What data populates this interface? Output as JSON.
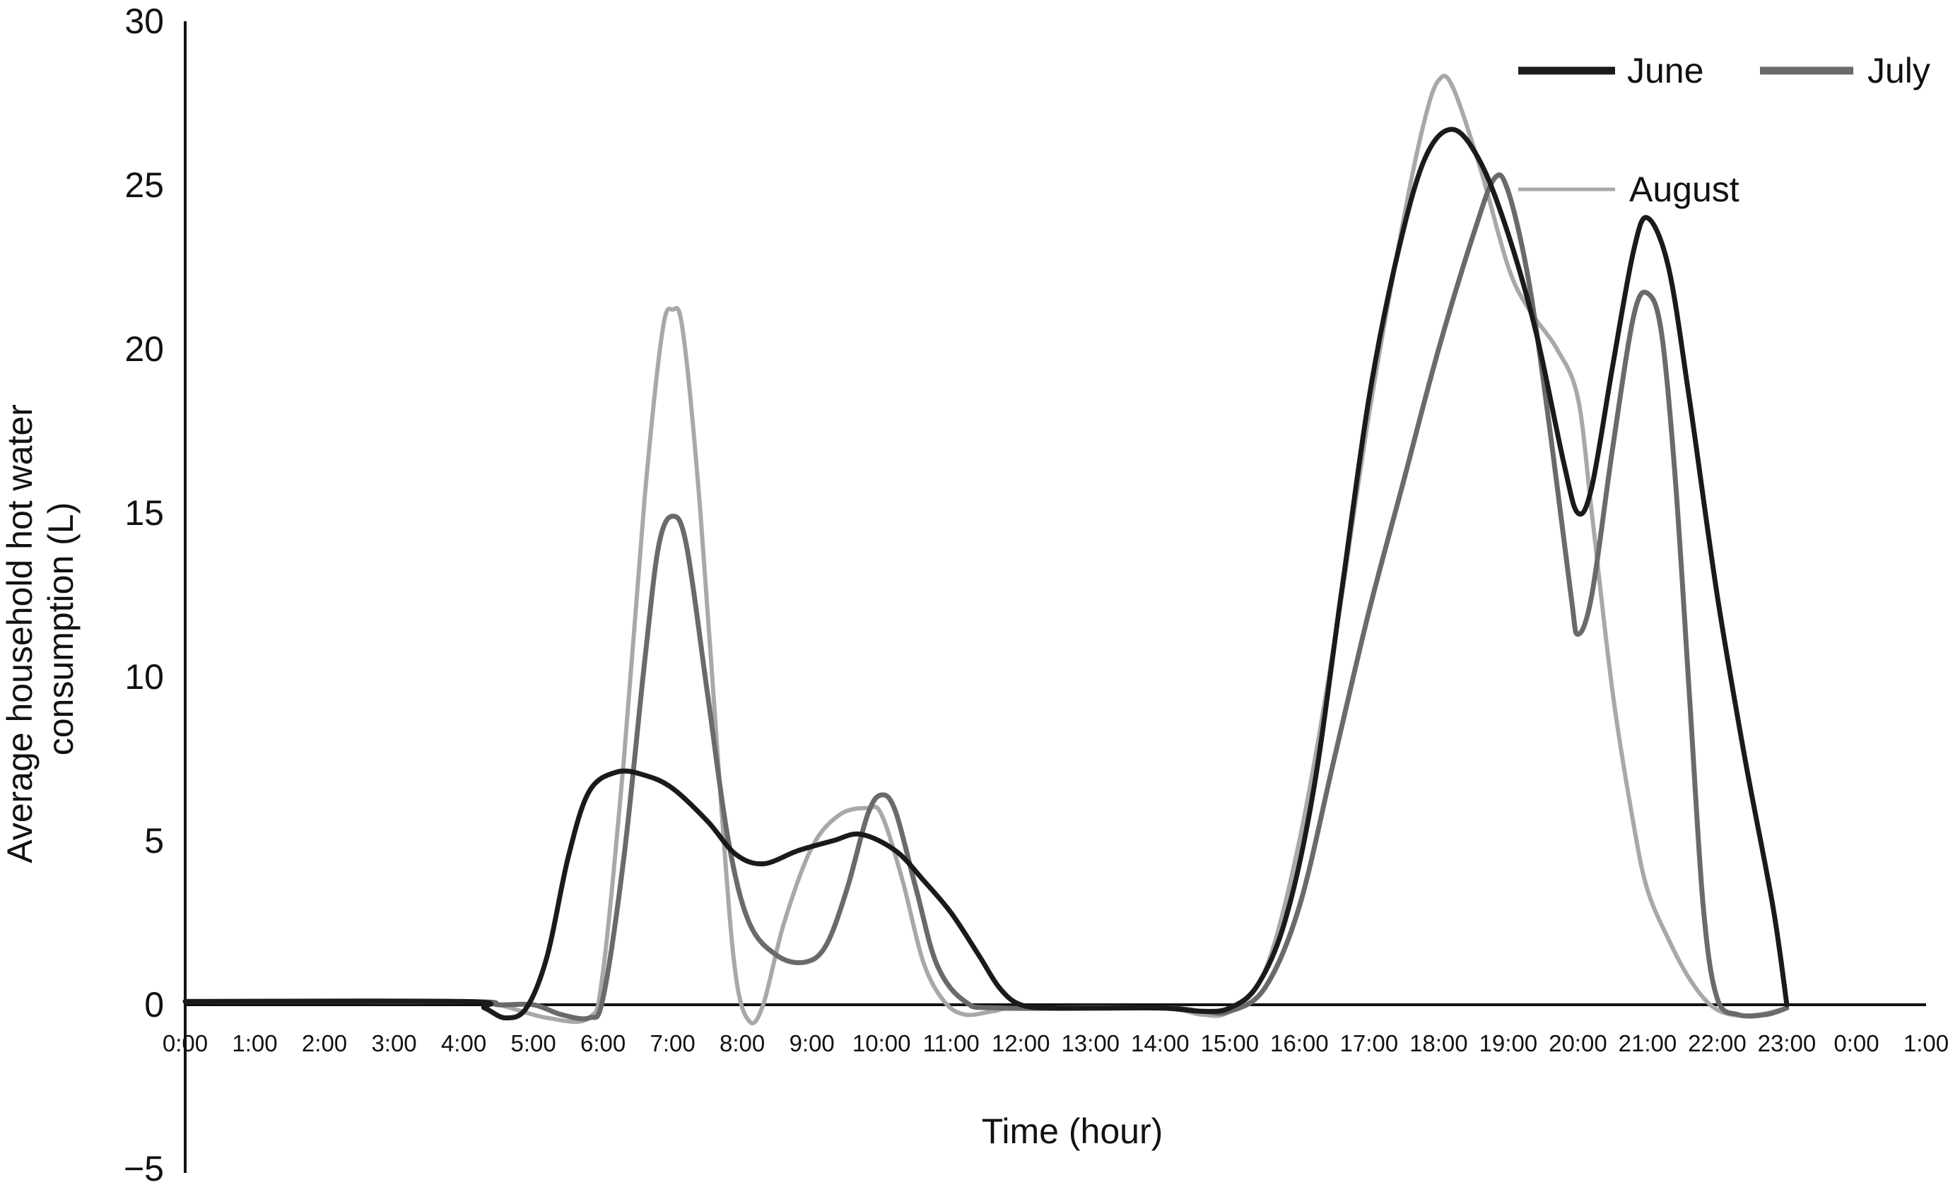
{
  "chart_data": {
    "type": "line",
    "title": "",
    "xlabel": "Time (hour)",
    "ylabel_lines": [
      "Average household hot water",
      "consumption (L)"
    ],
    "ylim": [
      -5,
      30
    ],
    "yticks": [
      "30",
      "25",
      "20",
      "15",
      "10",
      "5",
      "0",
      "−5"
    ],
    "x_tick_labels": [
      "0:00",
      "1:00",
      "2:00",
      "3:00",
      "4:00",
      "5:00",
      "6:00",
      "7:00",
      "8:00",
      "9:00",
      "10:00",
      "11:00",
      "12:00",
      "13:00",
      "14:00",
      "15:00",
      "16:00",
      "17:00",
      "18:00",
      "19:00",
      "20:00",
      "21:00",
      "22:00",
      "23:00",
      "0:00",
      "1:00"
    ],
    "x_unit": "hours since 0:00",
    "xlim": [
      0,
      25
    ],
    "grid": false,
    "legend_position": "top-right",
    "series": [
      {
        "name": "June",
        "color": "#1a1a1a",
        "width": 7,
        "points": [
          [
            0,
            0.1
          ],
          [
            4,
            0.1
          ],
          [
            4.3,
            -0.1
          ],
          [
            4.6,
            -0.4
          ],
          [
            4.9,
            -0.1
          ],
          [
            5.2,
            1.5
          ],
          [
            5.5,
            4.5
          ],
          [
            5.8,
            6.5
          ],
          [
            6.2,
            7.1
          ],
          [
            6.6,
            7.0
          ],
          [
            7.0,
            6.6
          ],
          [
            7.5,
            5.6
          ],
          [
            7.9,
            4.6
          ],
          [
            8.3,
            4.3
          ],
          [
            8.8,
            4.7
          ],
          [
            9.3,
            5.0
          ],
          [
            9.7,
            5.2
          ],
          [
            10.2,
            4.7
          ],
          [
            10.6,
            3.8
          ],
          [
            11.0,
            2.8
          ],
          [
            11.4,
            1.5
          ],
          [
            11.7,
            0.5
          ],
          [
            12.0,
            0.0
          ],
          [
            12.5,
            -0.1
          ],
          [
            14.0,
            -0.1
          ],
          [
            14.6,
            -0.2
          ],
          [
            15.0,
            -0.1
          ],
          [
            15.4,
            0.6
          ],
          [
            15.8,
            2.6
          ],
          [
            16.2,
            6.5
          ],
          [
            16.6,
            12.5
          ],
          [
            17.0,
            18.5
          ],
          [
            17.4,
            22.8
          ],
          [
            17.8,
            25.8
          ],
          [
            18.2,
            26.7
          ],
          [
            18.6,
            25.7
          ],
          [
            19.0,
            23.5
          ],
          [
            19.4,
            20.5
          ],
          [
            19.8,
            16.5
          ],
          [
            20.0,
            15.0
          ],
          [
            20.2,
            15.8
          ],
          [
            20.5,
            19.5
          ],
          [
            20.8,
            23.0
          ],
          [
            21.0,
            24.0
          ],
          [
            21.3,
            22.5
          ],
          [
            21.6,
            18.5
          ],
          [
            22.0,
            12.5
          ],
          [
            22.4,
            7.5
          ],
          [
            22.8,
            3.0
          ],
          [
            23.0,
            0.0
          ]
        ]
      },
      {
        "name": "July",
        "color": "#6a6a6a",
        "width": 7,
        "points": [
          [
            0,
            0.1
          ],
          [
            4,
            0.1
          ],
          [
            4.5,
            0.0
          ],
          [
            5.0,
            0.0
          ],
          [
            5.4,
            -0.3
          ],
          [
            5.8,
            -0.4
          ],
          [
            6.0,
            0.2
          ],
          [
            6.3,
            4.5
          ],
          [
            6.6,
            10.5
          ],
          [
            6.8,
            14.0
          ],
          [
            7.0,
            14.9
          ],
          [
            7.2,
            14.0
          ],
          [
            7.5,
            9.5
          ],
          [
            7.8,
            5.0
          ],
          [
            8.1,
            2.5
          ],
          [
            8.5,
            1.5
          ],
          [
            8.9,
            1.3
          ],
          [
            9.2,
            1.8
          ],
          [
            9.5,
            3.5
          ],
          [
            9.8,
            5.8
          ],
          [
            10.0,
            6.4
          ],
          [
            10.2,
            5.9
          ],
          [
            10.5,
            3.5
          ],
          [
            10.8,
            1.2
          ],
          [
            11.2,
            0.1
          ],
          [
            11.7,
            -0.1
          ],
          [
            14.0,
            -0.1
          ],
          [
            14.6,
            -0.2
          ],
          [
            15.0,
            -0.2
          ],
          [
            15.5,
            0.5
          ],
          [
            16.0,
            3.0
          ],
          [
            16.5,
            7.5
          ],
          [
            17.0,
            12.0
          ],
          [
            17.5,
            16.0
          ],
          [
            18.0,
            20.0
          ],
          [
            18.5,
            23.5
          ],
          [
            18.8,
            25.2
          ],
          [
            19.0,
            24.8
          ],
          [
            19.3,
            22.0
          ],
          [
            19.6,
            17.5
          ],
          [
            19.9,
            12.5
          ],
          [
            20.0,
            11.3
          ],
          [
            20.2,
            12.5
          ],
          [
            20.5,
            17.0
          ],
          [
            20.8,
            21.0
          ],
          [
            21.0,
            21.7
          ],
          [
            21.2,
            20.5
          ],
          [
            21.4,
            16.0
          ],
          [
            21.6,
            9.5
          ],
          [
            21.8,
            3.0
          ],
          [
            22.0,
            0.2
          ],
          [
            22.3,
            -0.3
          ],
          [
            22.7,
            -0.3
          ],
          [
            23.0,
            -0.1
          ]
        ]
      },
      {
        "name": "August",
        "color": "#a8a8a8",
        "width": 6,
        "points": [
          [
            0,
            0.1
          ],
          [
            4,
            0.1
          ],
          [
            4.5,
            0.0
          ],
          [
            5.2,
            -0.4
          ],
          [
            5.8,
            -0.4
          ],
          [
            6.0,
            1.0
          ],
          [
            6.3,
            7.5
          ],
          [
            6.6,
            15.5
          ],
          [
            6.85,
            20.5
          ],
          [
            7.0,
            21.2
          ],
          [
            7.15,
            20.5
          ],
          [
            7.4,
            15.0
          ],
          [
            7.7,
            6.0
          ],
          [
            7.9,
            1.0
          ],
          [
            8.1,
            -0.5
          ],
          [
            8.3,
            0.0
          ],
          [
            8.6,
            2.5
          ],
          [
            9.0,
            4.8
          ],
          [
            9.4,
            5.8
          ],
          [
            9.8,
            6.0
          ],
          [
            10.0,
            5.8
          ],
          [
            10.3,
            3.8
          ],
          [
            10.6,
            1.3
          ],
          [
            10.9,
            0.1
          ],
          [
            11.2,
            -0.3
          ],
          [
            11.6,
            -0.2
          ],
          [
            12.0,
            -0.1
          ],
          [
            14.0,
            -0.1
          ],
          [
            14.6,
            -0.3
          ],
          [
            15.0,
            -0.2
          ],
          [
            15.5,
            1.0
          ],
          [
            16.0,
            5.0
          ],
          [
            16.5,
            11.0
          ],
          [
            17.0,
            18.0
          ],
          [
            17.5,
            24.0
          ],
          [
            17.8,
            27.0
          ],
          [
            18.0,
            28.2
          ],
          [
            18.2,
            28.0
          ],
          [
            18.6,
            25.5
          ],
          [
            19.0,
            22.5
          ],
          [
            19.3,
            21.2
          ],
          [
            19.7,
            20.0
          ],
          [
            20.0,
            18.5
          ],
          [
            20.2,
            15.0
          ],
          [
            20.5,
            9.5
          ],
          [
            20.8,
            5.5
          ],
          [
            21.0,
            3.5
          ],
          [
            21.3,
            2.0
          ],
          [
            21.6,
            0.8
          ],
          [
            21.9,
            0.0
          ],
          [
            22.2,
            -0.3
          ],
          [
            22.6,
            -0.3
          ],
          [
            23.0,
            -0.1
          ]
        ]
      }
    ]
  }
}
